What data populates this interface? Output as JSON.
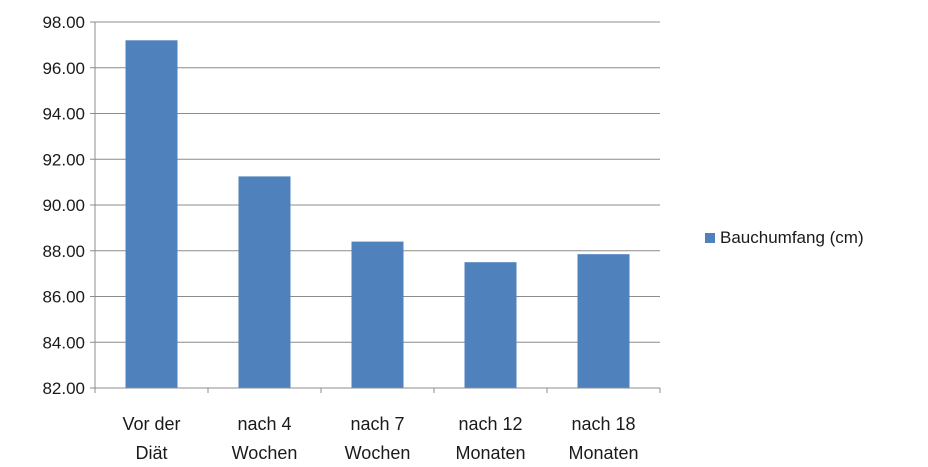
{
  "chart_data": {
    "type": "bar",
    "title": "",
    "xlabel": "",
    "ylabel": "",
    "categories": [
      [
        "Vor der",
        "Diät"
      ],
      [
        "nach 4",
        "Wochen"
      ],
      [
        "nach 7",
        "Wochen"
      ],
      [
        "nach 12",
        "Monaten"
      ],
      [
        "nach 18",
        "Monaten"
      ]
    ],
    "series": [
      {
        "name": "Bauchumfang (cm)",
        "color": "#4f81bd",
        "values": [
          97.2,
          91.25,
          88.4,
          87.5,
          87.85
        ]
      }
    ],
    "ylim": [
      82.0,
      98.0
    ],
    "ytick_step": 2.0,
    "ytick_decimals": 2,
    "grid": true,
    "legend_position": "right"
  }
}
